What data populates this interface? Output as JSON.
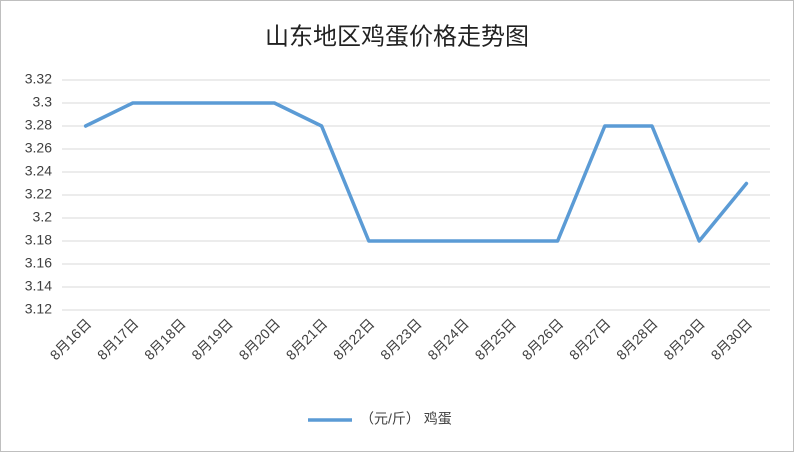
{
  "chart_data": {
    "type": "line",
    "title": "山东地区鸡蛋价格走势图",
    "categories": [
      "8月16日",
      "8月17日",
      "8月18日",
      "8月19日",
      "8月20日",
      "8月21日",
      "8月22日",
      "8月23日",
      "8月24日",
      "8月25日",
      "8月26日",
      "8月27日",
      "8月28日",
      "8月29日",
      "8月30日"
    ],
    "series": [
      {
        "name": "（元/斤） 鸡蛋",
        "color": "#5b9bd5",
        "values": [
          3.28,
          3.3,
          3.3,
          3.3,
          3.3,
          3.28,
          3.18,
          3.18,
          3.18,
          3.18,
          3.18,
          3.28,
          3.28,
          3.18,
          3.23
        ]
      }
    ],
    "ylim": [
      3.12,
      3.32
    ],
    "yticks": [
      3.12,
      3.14,
      3.16,
      3.18,
      3.2,
      3.22,
      3.24,
      3.26,
      3.28,
      3.3,
      3.32
    ],
    "grid": true,
    "legend": "bottom"
  }
}
